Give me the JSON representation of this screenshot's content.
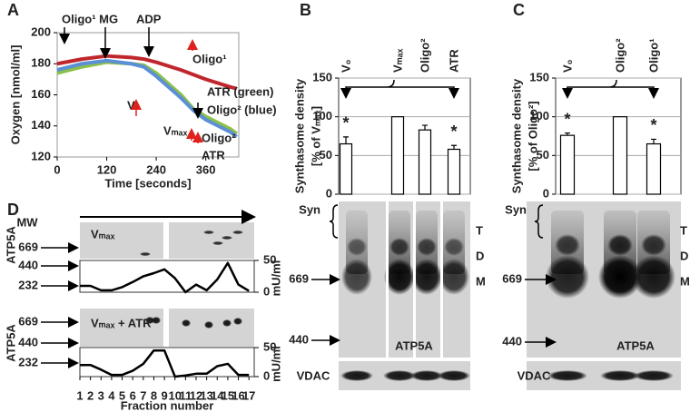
{
  "panel_labels": [
    "A",
    "B",
    "C",
    "D"
  ],
  "chart_data": [
    {
      "type": "line",
      "xlabel": "Time [seconds]",
      "ylabel": "Oxygen [nmol/ml]",
      "x": [
        0,
        60,
        120,
        180,
        210,
        240,
        300,
        330,
        360,
        420,
        435
      ],
      "series": [
        {
          "color": "#c0272d",
          "values": [
            180,
            183,
            185,
            184,
            183,
            181,
            176,
            173,
            170,
            165,
            164
          ]
        },
        {
          "color": "#8cc04a",
          "values": [
            174,
            178,
            181,
            180,
            179,
            174,
            160,
            151,
            146,
            138,
            135
          ]
        },
        {
          "color": "#5b8fd6",
          "values": [
            176,
            180,
            182,
            180,
            178,
            172,
            158,
            150,
            144,
            136,
            133
          ]
        }
      ],
      "xlim": [
        0,
        440
      ],
      "xticks": [
        0,
        120,
        240,
        360
      ],
      "ylim": [
        120,
        200
      ],
      "yticks": [
        120,
        140,
        160,
        180,
        200
      ],
      "annotations": [
        {
          "text": "Oligo¹ MG",
          "color": "#222"
        },
        {
          "text": "ADP",
          "color": "#222"
        },
        {
          "text": "Oligo¹",
          "color": "#c0272d"
        },
        {
          "text": "V₀",
          "color": "#c0272d"
        },
        {
          "text": "ATR (green)",
          "color": "#222"
        },
        {
          "text": "Oligo² (blue)",
          "color": "#222"
        },
        {
          "text": "Vₘₐₓ",
          "color": "#c0272d"
        },
        {
          "text": "Oligo²",
          "color": "#c0272d"
        },
        {
          "text": "ATR",
          "color": "#c0272d"
        }
      ]
    },
    {
      "type": "bar",
      "ylabel": [
        "Synthasome density",
        "[% of Vₘₐₓ]"
      ],
      "categories": [
        "V₀",
        "Vₘₐₓ",
        "Oligo²",
        "ATR"
      ],
      "values": [
        65,
        100,
        83,
        58
      ],
      "errors": [
        9,
        0,
        6,
        5
      ],
      "significance": [
        "*",
        null,
        null,
        "*"
      ],
      "ylim": [
        0,
        150
      ],
      "yticks": [
        0,
        50,
        100,
        150
      ],
      "grid": true,
      "color": "#ffffff"
    },
    {
      "type": "bar",
      "ylabel": [
        "Synthasome density",
        "[% of Oligo²]"
      ],
      "categories": [
        "V₀",
        "Oligo²",
        "Oligo¹"
      ],
      "values": [
        76,
        100,
        65
      ],
      "errors": [
        3,
        0,
        6
      ],
      "significance": [
        "*",
        null,
        "*"
      ],
      "ylim": [
        0,
        150
      ],
      "yticks": [
        0,
        50,
        100,
        150
      ],
      "grid": true,
      "color": "#ffffff"
    },
    {
      "type": "line",
      "annotation": "Vₘₐₓ",
      "mw_title": "MW",
      "blot_label": "ATP5A",
      "mw": [
        669,
        440,
        232
      ],
      "ylabel": "mU/ml",
      "x": [
        1,
        2,
        3,
        4,
        5,
        6,
        7,
        8,
        9,
        10,
        11,
        12,
        13,
        14,
        15,
        16,
        17
      ],
      "series": [
        {
          "color": "#000000",
          "values": [
            10,
            10,
            3,
            3,
            8,
            16,
            25,
            30,
            36,
            22,
            0,
            12,
            3,
            20,
            46,
            12,
            2
          ]
        }
      ],
      "xlim": [
        1,
        17.5
      ],
      "ylim": [
        0,
        50
      ],
      "yticks": [
        0,
        50
      ]
    },
    {
      "type": "line",
      "annotation": "Vₘₐₓ + ATR",
      "blot_label": "ATP5A",
      "mw": [
        669,
        440,
        232
      ],
      "ylabel": "mU/ml",
      "xlabel": "Fraction number",
      "x": [
        1,
        2,
        3,
        4,
        5,
        6,
        7,
        8,
        9,
        10,
        11,
        12,
        13,
        14,
        15,
        16,
        17
      ],
      "series": [
        {
          "color": "#000000",
          "values": [
            20,
            20,
            12,
            3,
            3,
            10,
            22,
            45,
            45,
            0,
            2,
            5,
            5,
            18,
            22,
            3,
            3
          ]
        }
      ],
      "xlim": [
        1,
        17.5
      ],
      "xticks": [
        1,
        2,
        3,
        4,
        5,
        6,
        7,
        8,
        9,
        10,
        11,
        12,
        13,
        14,
        15,
        16,
        17
      ],
      "ylim": [
        0,
        50
      ],
      "yticks": [
        0,
        50
      ]
    }
  ],
  "blots": [
    {
      "syn": "Syn",
      "bands": [
        "T",
        "D",
        "M"
      ],
      "mw": [
        669,
        440
      ],
      "protein": "ATP5A",
      "loading": "VDAC"
    },
    {
      "syn": "Syn",
      "bands": [
        "T",
        "D",
        "M"
      ],
      "mw": [
        669,
        440
      ],
      "protein": "ATP5A",
      "loading": "VDAC"
    }
  ]
}
